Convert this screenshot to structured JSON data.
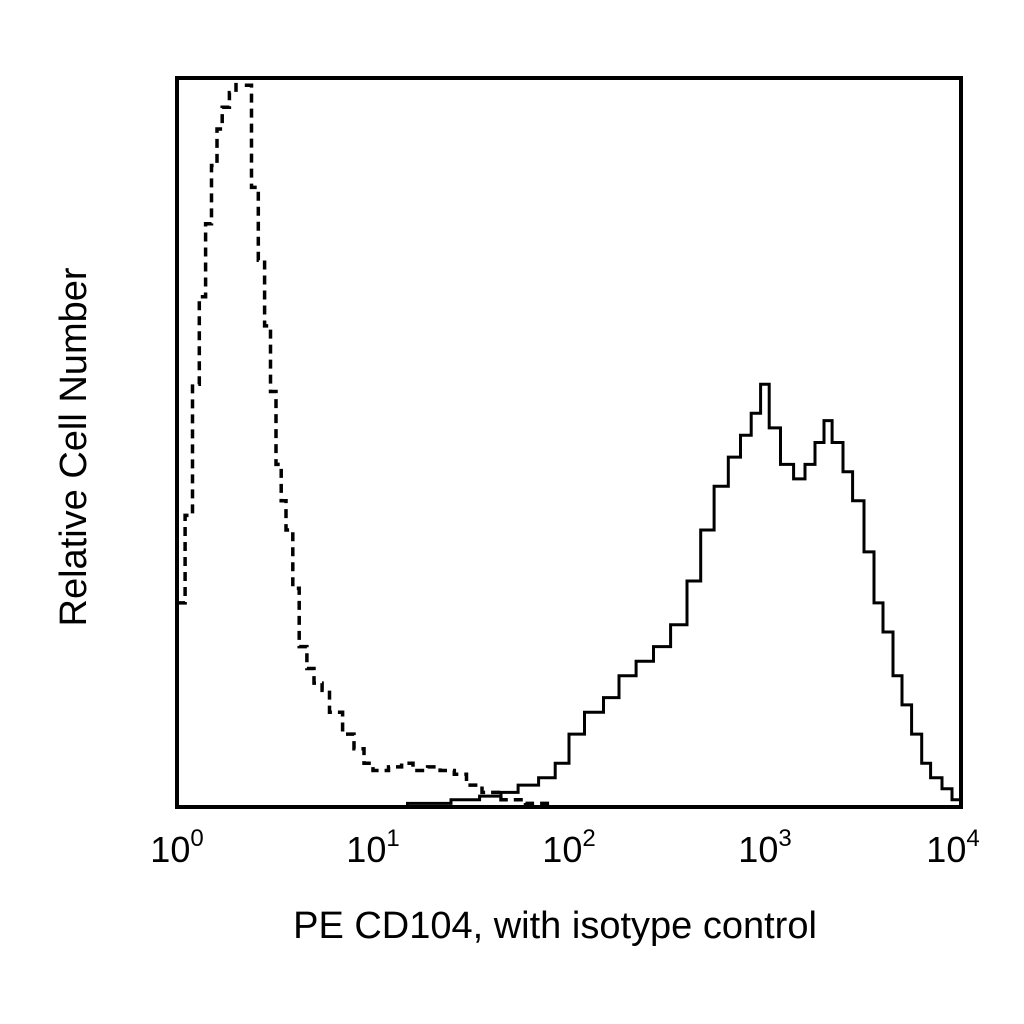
{
  "chart_data": {
    "type": "line",
    "title": "",
    "xlabel": "PE CD104, with isotype control",
    "ylabel": "Relative Cell Number",
    "x_scale": "log",
    "xlim": [
      1,
      10000
    ],
    "ylim": [
      0,
      100
    ],
    "grid": false,
    "legend": "none",
    "x_ticks": [
      {
        "base": "10",
        "exp": "0",
        "value": 1
      },
      {
        "base": "10",
        "exp": "1",
        "value": 10
      },
      {
        "base": "10",
        "exp": "2",
        "value": 100
      },
      {
        "base": "10",
        "exp": "3",
        "value": 1000
      },
      {
        "base": "10",
        "exp": "4",
        "value": 10000
      }
    ],
    "series": [
      {
        "style": "dashed",
        "color": "#000000",
        "points": [
          [
            1.0,
            28
          ],
          [
            1.1,
            40
          ],
          [
            1.2,
            58
          ],
          [
            1.3,
            70
          ],
          [
            1.4,
            80
          ],
          [
            1.5,
            88
          ],
          [
            1.6,
            93
          ],
          [
            1.7,
            96
          ],
          [
            1.85,
            98
          ],
          [
            2.0,
            100
          ],
          [
            2.2,
            99
          ],
          [
            2.4,
            85
          ],
          [
            2.6,
            75
          ],
          [
            2.8,
            66
          ],
          [
            3.0,
            57
          ],
          [
            3.2,
            47
          ],
          [
            3.4,
            42
          ],
          [
            3.6,
            38
          ],
          [
            3.9,
            30
          ],
          [
            4.2,
            22
          ],
          [
            4.6,
            19
          ],
          [
            5.0,
            17
          ],
          [
            5.5,
            16
          ],
          [
            6.0,
            13
          ],
          [
            7.0,
            10
          ],
          [
            8.0,
            8
          ],
          [
            9.0,
            6
          ],
          [
            10.0,
            5
          ],
          [
            12.0,
            5.5
          ],
          [
            14.0,
            6
          ],
          [
            16.0,
            5
          ],
          [
            19.0,
            5.5
          ],
          [
            22.0,
            5
          ],
          [
            26.0,
            4.5
          ],
          [
            30.0,
            3
          ],
          [
            36.0,
            2
          ],
          [
            45.0,
            1
          ],
          [
            60.0,
            0.5
          ],
          [
            80.0,
            0
          ]
        ]
      },
      {
        "style": "solid",
        "color": "#000000",
        "points": [
          [
            8.0,
            0
          ],
          [
            15.0,
            0.5
          ],
          [
            25.0,
            1
          ],
          [
            35.0,
            1.5
          ],
          [
            45.0,
            2
          ],
          [
            55.0,
            3
          ],
          [
            70.0,
            4
          ],
          [
            85.0,
            6
          ],
          [
            100.0,
            10
          ],
          [
            120.0,
            13
          ],
          [
            150.0,
            15
          ],
          [
            180.0,
            18
          ],
          [
            220.0,
            20
          ],
          [
            270.0,
            22
          ],
          [
            330.0,
            25
          ],
          [
            400.0,
            31
          ],
          [
            470.0,
            38
          ],
          [
            550.0,
            44
          ],
          [
            650.0,
            48
          ],
          [
            750.0,
            51
          ],
          [
            850.0,
            54
          ],
          [
            950.0,
            58
          ],
          [
            1050.0,
            52
          ],
          [
            1200.0,
            47
          ],
          [
            1400.0,
            45
          ],
          [
            1600.0,
            47
          ],
          [
            1800.0,
            50
          ],
          [
            2000.0,
            53
          ],
          [
            2200.0,
            50
          ],
          [
            2500.0,
            46
          ],
          [
            2800.0,
            42
          ],
          [
            3200.0,
            35
          ],
          [
            3600.0,
            28
          ],
          [
            4000.0,
            24
          ],
          [
            4500.0,
            18
          ],
          [
            5000.0,
            14
          ],
          [
            5600.0,
            10
          ],
          [
            6300.0,
            6
          ],
          [
            7000.0,
            4
          ],
          [
            8000.0,
            2.5
          ],
          [
            9000.0,
            1
          ],
          [
            10000.0,
            0.5
          ]
        ]
      }
    ]
  }
}
